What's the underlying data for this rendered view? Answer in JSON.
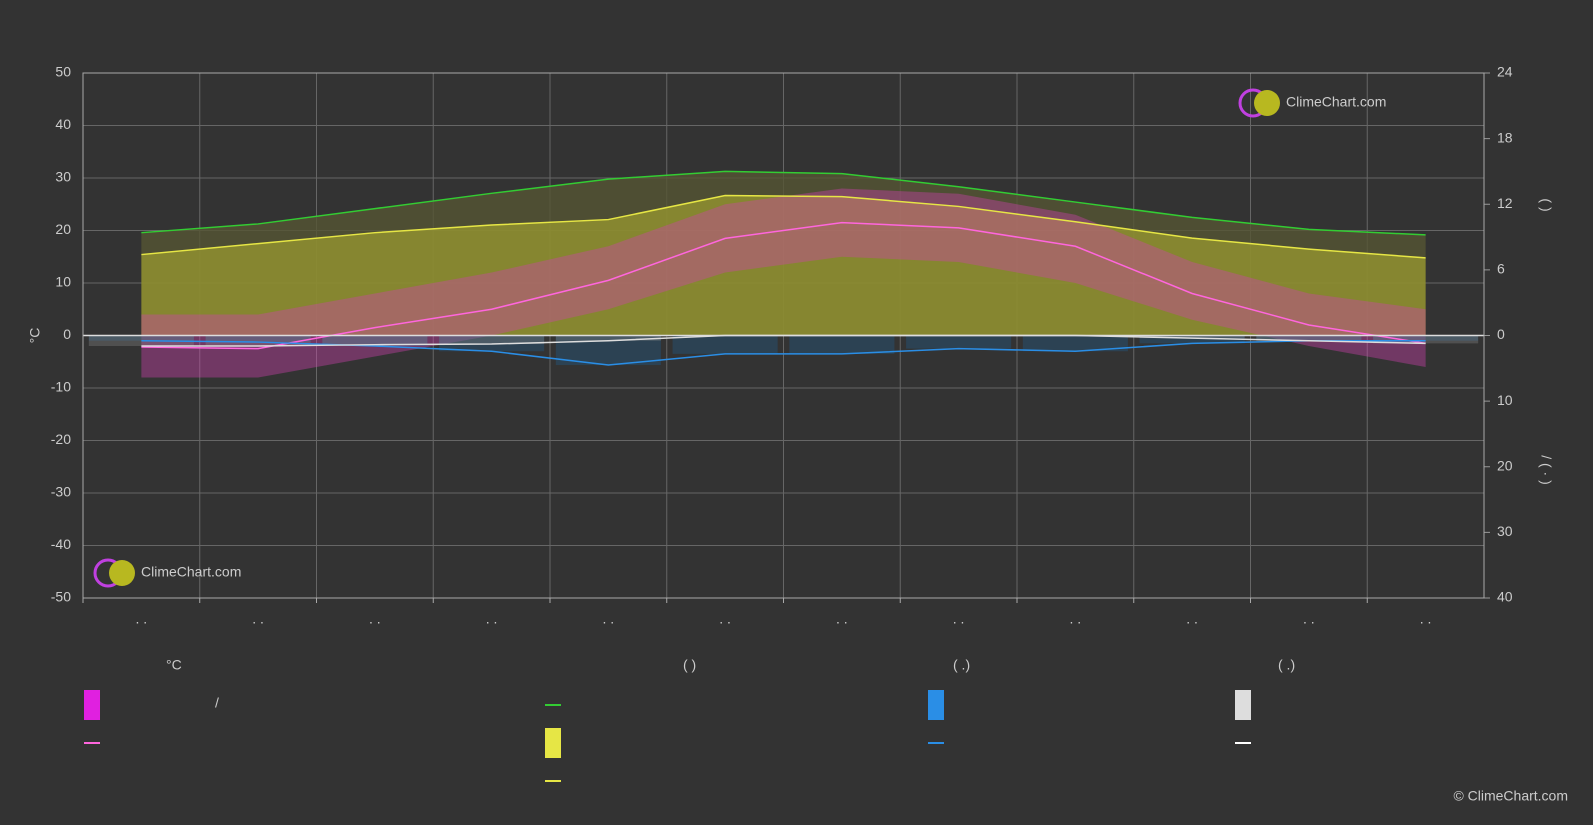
{
  "chart_data": {
    "type": "climate",
    "categories": [
      ". .",
      ". .",
      ". .",
      ". .",
      ". .",
      ". .",
      ". .",
      ". .",
      ". .",
      ". .",
      ". .",
      ". ."
    ],
    "y_label": "°C",
    "ylim": [
      -50,
      50
    ],
    "yticks": [
      50,
      40,
      30,
      20,
      10,
      0,
      -10,
      -20,
      -30,
      -40,
      -50
    ],
    "grid": true,
    "sunshine_axis": {
      "lim": [
        0,
        24
      ],
      "ticks": [
        0,
        6,
        12,
        18,
        24
      ],
      "label": "(    )"
    },
    "precip_axis": {
      "lim": [
        0,
        40
      ],
      "ticks": [
        0,
        10,
        20,
        30,
        40
      ],
      "label": "/   (  ·  )"
    },
    "day_length": {
      "color": "#33cc33",
      "values": [
        9.4,
        10.2,
        11.6,
        13.0,
        14.3,
        15.0,
        14.8,
        13.6,
        12.2,
        10.8,
        9.7,
        9.2
      ]
    },
    "sunshine": {
      "color": "#e6e645",
      "values": [
        7.4,
        8.4,
        9.4,
        10.1,
        10.6,
        12.8,
        12.7,
        11.8,
        10.4,
        8.9,
        7.9,
        7.1
      ]
    },
    "temp_mean": {
      "color": "#ff66dd",
      "values": [
        -2.2,
        -2.5,
        1.5,
        5,
        10.5,
        18.5,
        21.5,
        20.5,
        17,
        8,
        2,
        -1.5
      ]
    },
    "temp_min": {
      "values": [
        -8,
        -8,
        -4,
        0,
        5,
        12,
        15,
        14,
        10,
        3,
        -2,
        -6
      ]
    },
    "temp_max": {
      "values": [
        4,
        4,
        8,
        12,
        17,
        25,
        28,
        27,
        23,
        14,
        8,
        5
      ]
    },
    "rain": {
      "color": "#2a8ee6",
      "values": [
        0.8,
        1.0,
        1.6,
        2.4,
        4.5,
        2.8,
        2.8,
        2.0,
        2.4,
        1.2,
        0.8,
        0.8
      ]
    },
    "snow": {
      "color": "#dddddd",
      "values": [
        1.6,
        1.6,
        1.4,
        1.3,
        0.8,
        0,
        0,
        0,
        0,
        0.4,
        0.8,
        1.2
      ]
    },
    "legend": {
      "temp_header": "°C",
      "temp_slash": "/",
      "sun_header": "(           )",
      "rain_header": "(   .)",
      "snow_header": "(   .)"
    },
    "logo": "ClimeChart.com",
    "copyright": "© ClimeChart.com"
  }
}
